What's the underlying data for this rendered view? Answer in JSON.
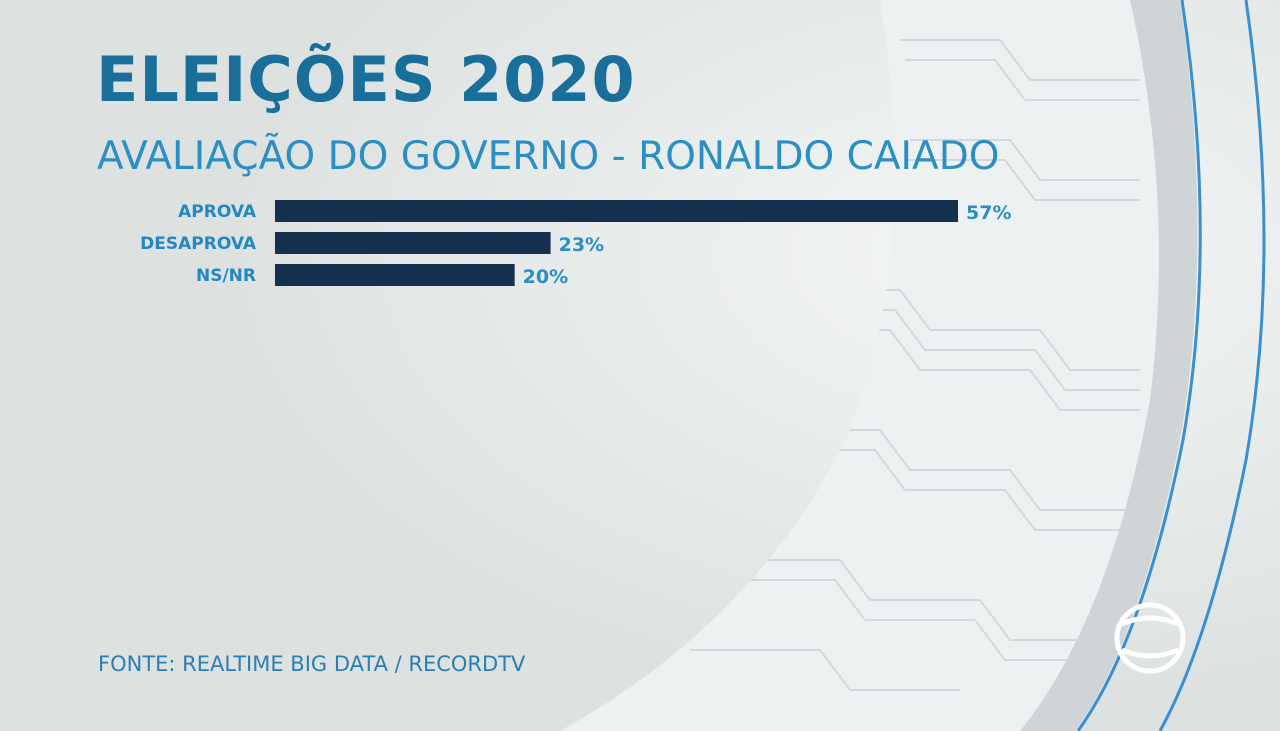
{
  "header": {
    "title": "ELEIÇÕES 2020",
    "subtitle": "AVALIAÇÃO DO GOVERNO - RONALDO CAIADO"
  },
  "chart_data": {
    "type": "bar",
    "orientation": "horizontal",
    "categories": [
      "APROVA",
      "DESAPROVA",
      "NS/NR"
    ],
    "values": [
      57,
      23,
      20
    ],
    "value_labels": [
      "57%",
      "23%",
      "20%"
    ],
    "unit": "%",
    "xlim": [
      0,
      57
    ],
    "grid": false,
    "legend": "none",
    "bar_color": "#15304f",
    "label_color": "#2487bf"
  },
  "footer": {
    "source": "FONTE: REALTIME BIG DATA / RECORDTV"
  },
  "brand": {
    "logo_icon": "recordtv-logo-icon",
    "accent_color": "#1a6f9a",
    "line_color": "#3a8fd0"
  }
}
